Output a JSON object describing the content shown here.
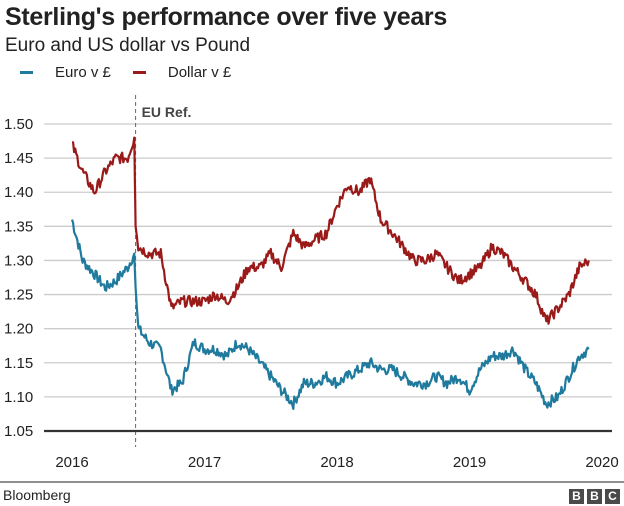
{
  "header": {
    "title": "Sterling's performance over five years",
    "subtitle": "Euro and US dollar vs Pound"
  },
  "footer": {
    "source": "Bloomberg",
    "logo_letters": [
      "B",
      "B",
      "C"
    ]
  },
  "chart_data": {
    "type": "line",
    "title": "Sterling's performance over five years",
    "subtitle": "Euro and US dollar vs Pound",
    "xlabel": "",
    "ylabel": "",
    "x_range": [
      2016.0,
      2020.0
    ],
    "ylim": [
      1.05,
      1.5
    ],
    "y_ticks": [
      1.05,
      1.1,
      1.15,
      1.2,
      1.25,
      1.3,
      1.35,
      1.4,
      1.45,
      1.5
    ],
    "y_tick_labels": [
      "1.05",
      "1.10",
      "1.15",
      "1.20",
      "1.25",
      "1.30",
      "1.35",
      "1.40",
      "1.45",
      "1.50"
    ],
    "x_ticks": [
      2016,
      2017,
      2018,
      2019,
      2020
    ],
    "x_tick_labels": [
      "2016",
      "2017",
      "2018",
      "2019",
      "2020"
    ],
    "grid": true,
    "legend_position": "top-left",
    "annotations": [
      {
        "label": "EU Ref.",
        "x": 2016.48,
        "type": "vertical-dashed-line"
      }
    ],
    "x": [
      2016.0,
      2016.08,
      2016.17,
      2016.25,
      2016.33,
      2016.42,
      2016.47,
      2016.48,
      2016.5,
      2016.58,
      2016.67,
      2016.75,
      2016.83,
      2016.92,
      2017.0,
      2017.08,
      2017.17,
      2017.25,
      2017.33,
      2017.42,
      2017.5,
      2017.58,
      2017.67,
      2017.75,
      2017.83,
      2017.92,
      2018.0,
      2018.08,
      2018.17,
      2018.25,
      2018.33,
      2018.42,
      2018.5,
      2018.58,
      2018.67,
      2018.75,
      2018.83,
      2018.92,
      2019.0,
      2019.08,
      2019.17,
      2019.25,
      2019.33,
      2019.42,
      2019.5,
      2019.58,
      2019.67,
      2019.75,
      2019.83,
      2019.9
    ],
    "series": [
      {
        "name": "Euro v £",
        "color": "#1f7a9e",
        "values": [
          1.36,
          1.3,
          1.28,
          1.26,
          1.27,
          1.29,
          1.31,
          1.26,
          1.2,
          1.18,
          1.17,
          1.11,
          1.12,
          1.18,
          1.17,
          1.17,
          1.16,
          1.18,
          1.17,
          1.15,
          1.13,
          1.11,
          1.09,
          1.12,
          1.12,
          1.13,
          1.12,
          1.13,
          1.14,
          1.15,
          1.14,
          1.14,
          1.13,
          1.12,
          1.12,
          1.13,
          1.12,
          1.13,
          1.11,
          1.14,
          1.16,
          1.16,
          1.17,
          1.14,
          1.12,
          1.09,
          1.1,
          1.13,
          1.16,
          1.17
        ]
      },
      {
        "name": "Dollar v £",
        "color": "#9a1a1a",
        "values": [
          1.47,
          1.43,
          1.4,
          1.43,
          1.45,
          1.45,
          1.48,
          1.35,
          1.32,
          1.31,
          1.31,
          1.23,
          1.24,
          1.24,
          1.24,
          1.25,
          1.24,
          1.26,
          1.29,
          1.29,
          1.31,
          1.29,
          1.34,
          1.32,
          1.33,
          1.34,
          1.38,
          1.41,
          1.4,
          1.42,
          1.36,
          1.34,
          1.32,
          1.3,
          1.3,
          1.31,
          1.29,
          1.27,
          1.28,
          1.29,
          1.32,
          1.31,
          1.29,
          1.27,
          1.25,
          1.21,
          1.23,
          1.25,
          1.29,
          1.3
        ]
      }
    ]
  }
}
